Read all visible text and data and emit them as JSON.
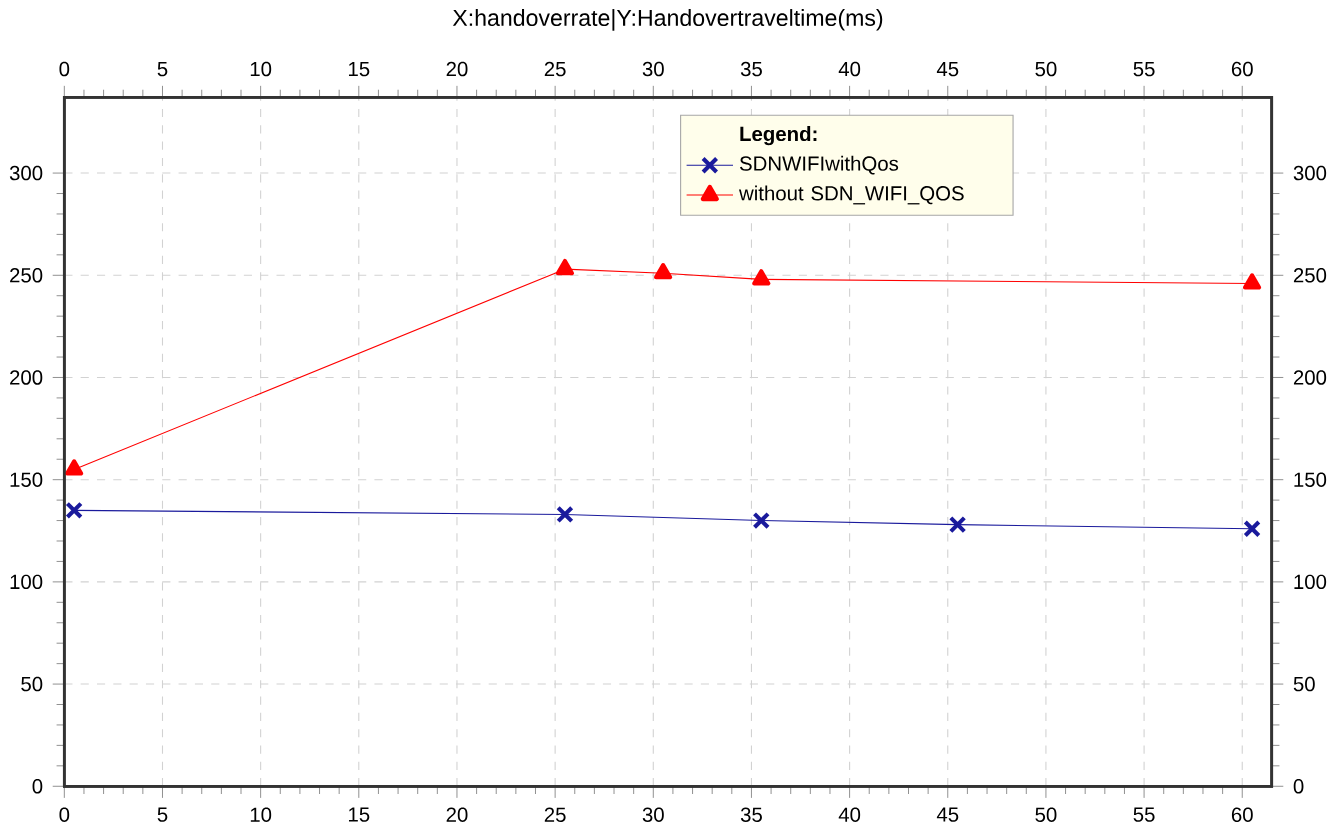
{
  "chart_data": {
    "type": "line",
    "title": "X:handoverrate|Y:Handovertraveltime(ms)",
    "legend_title": "Legend:",
    "series": [
      {
        "name": "SDNWIFIwithQos",
        "color": "#1a1a9c",
        "marker": "cross",
        "x": [
          0.5,
          25.5,
          35.5,
          45.5,
          60.5
        ],
        "values": [
          135,
          133,
          130,
          128,
          126
        ]
      },
      {
        "name": "without SDN_WIFI_QOS",
        "color": "#ff0000",
        "marker": "triangle",
        "x": [
          0.5,
          25.5,
          30.5,
          35.5,
          60.5
        ],
        "values": [
          155,
          253,
          251,
          248,
          246
        ]
      }
    ],
    "xlim": [
      0,
      61.5
    ],
    "ylim": [
      0,
      337
    ],
    "xticks": [
      0,
      5,
      10,
      15,
      20,
      25,
      30,
      35,
      40,
      45,
      50,
      55,
      60
    ],
    "yticks": [
      0,
      50,
      100,
      150,
      200,
      250,
      300
    ],
    "x2lim": [
      0,
      61.5
    ],
    "x2ticks": [
      0,
      5,
      10,
      15,
      20,
      25,
      30,
      35,
      40,
      45,
      50,
      55,
      60
    ],
    "y2lim": [
      0,
      337
    ],
    "y2ticks": [
      0,
      50,
      100,
      150,
      200,
      250,
      300
    ],
    "grid": true,
    "legend": "top right",
    "line_style": "solid"
  }
}
